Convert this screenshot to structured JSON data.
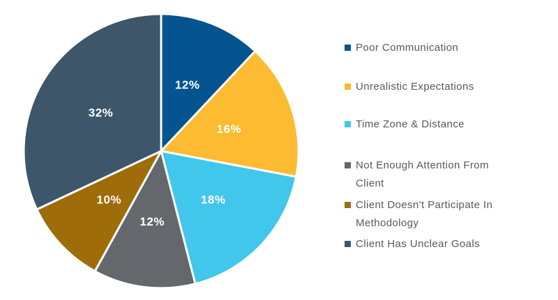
{
  "chart_data": {
    "type": "pie",
    "title": "",
    "categories": [
      "Poor Communication",
      "Unrealistic Expectations",
      "Time Zone & Distance",
      "Not Enough Attention From Client",
      "Client Doesn't Participate In Methodology",
      "Client Has Unclear Goals"
    ],
    "values": [
      12,
      16,
      18,
      12,
      10,
      32
    ],
    "data_labels": [
      "12%",
      "16%",
      "18%",
      "12%",
      "10%",
      "32%"
    ],
    "colors": [
      "#05548f",
      "#fcbb30",
      "#41c6ec",
      "#64686c",
      "#9e6c08",
      "#3d566a"
    ],
    "legend_display_labels": [
      "Poor Communication",
      "Unrealistic Expectations",
      "Time Zone & Distance",
      "Not Enough Attention From\nClient",
      "Client Doesn't Participate In\nMethodology",
      "Client Has Unclear Goals"
    ],
    "start_angle_deg": 0,
    "direction": "clockwise",
    "legend_position": "right",
    "slice_label_color": "#ffffff",
    "slice_border_color": "#ffffff",
    "legend_text_color": "#595959",
    "background_color": "#ffffff"
  }
}
